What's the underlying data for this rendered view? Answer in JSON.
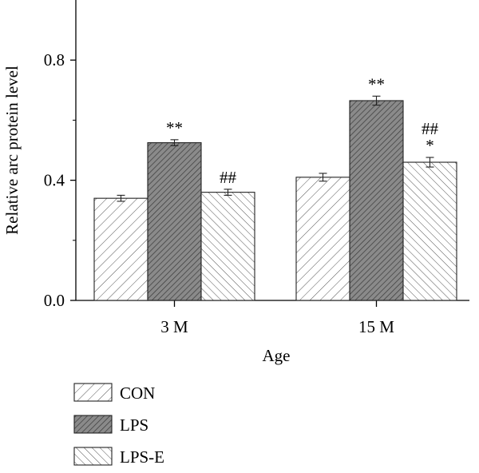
{
  "chart_data": {
    "type": "bar",
    "title": "",
    "xlabel": "Age",
    "ylabel": "Relative arc protein level",
    "categories": [
      "3 M",
      "15 M"
    ],
    "ylim": [
      0,
      1.0
    ],
    "yticks": [
      0.0,
      0.4,
      0.8
    ],
    "ytick_labels": [
      "0.0",
      "0.4",
      "0.8"
    ],
    "grid": false,
    "legend_position": "bottom-left",
    "series": [
      {
        "name": "CON",
        "values": [
          0.34,
          0.41
        ],
        "errors": [
          0.01,
          0.013
        ],
        "annotations": [
          "",
          ""
        ],
        "fill": "hatch-light",
        "color": "#ffffff"
      },
      {
        "name": "LPS",
        "values": [
          0.525,
          0.665
        ],
        "errors": [
          0.01,
          0.015
        ],
        "annotations": [
          "**",
          "**"
        ],
        "fill": "hatch-dark",
        "color": "#7a7a7a"
      },
      {
        "name": "LPS-E",
        "values": [
          0.36,
          0.46
        ],
        "errors": [
          0.01,
          0.016
        ],
        "annotations": [
          "##",
          "##\n*"
        ],
        "fill": "hatch-back",
        "color": "#ffffff"
      }
    ]
  }
}
